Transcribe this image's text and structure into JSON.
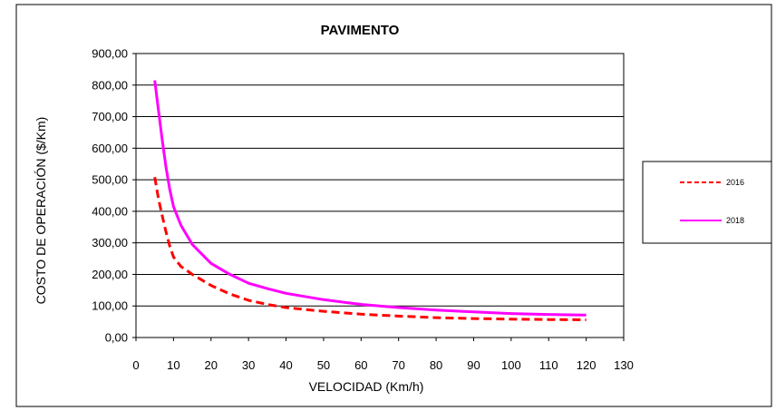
{
  "chart_data": {
    "type": "line",
    "title": "PAVIMENTO",
    "xlabel": "VELOCIDAD (Km/h)",
    "ylabel": "COSTO DE OPERACIÓN ($/Km)",
    "xlim": [
      0,
      130
    ],
    "ylim": [
      0,
      900
    ],
    "x_ticks": [
      "0",
      "10",
      "20",
      "30",
      "40",
      "50",
      "60",
      "70",
      "80",
      "90",
      "100",
      "110",
      "120",
      "130"
    ],
    "y_ticks": [
      "0,00",
      "100,00",
      "200,00",
      "300,00",
      "400,00",
      "500,00",
      "600,00",
      "700,00",
      "800,00",
      "900,00"
    ],
    "grid": "horizontal",
    "legend_position": "right",
    "series": [
      {
        "name": "2016",
        "color": "#ff0000",
        "style": "dashed",
        "x": [
          5,
          6,
          7,
          8,
          9,
          10,
          12,
          15,
          20,
          25,
          30,
          35,
          40,
          50,
          60,
          70,
          80,
          90,
          100,
          110,
          120
        ],
        "values": [
          508,
          440,
          385,
          335,
          290,
          255,
          225,
          200,
          165,
          138,
          118,
          105,
          95,
          83,
          74,
          68,
          63,
          60,
          58,
          57,
          56
        ]
      },
      {
        "name": "2018",
        "color": "#ff00ff",
        "style": "solid",
        "x": [
          5,
          6,
          7,
          8,
          9,
          10,
          11,
          12,
          15,
          20,
          25,
          30,
          35,
          40,
          50,
          60,
          70,
          80,
          90,
          100,
          110,
          120
        ],
        "values": [
          815,
          720,
          625,
          540,
          470,
          415,
          385,
          355,
          295,
          235,
          200,
          172,
          155,
          140,
          120,
          105,
          95,
          87,
          81,
          76,
          73,
          71
        ]
      }
    ]
  }
}
